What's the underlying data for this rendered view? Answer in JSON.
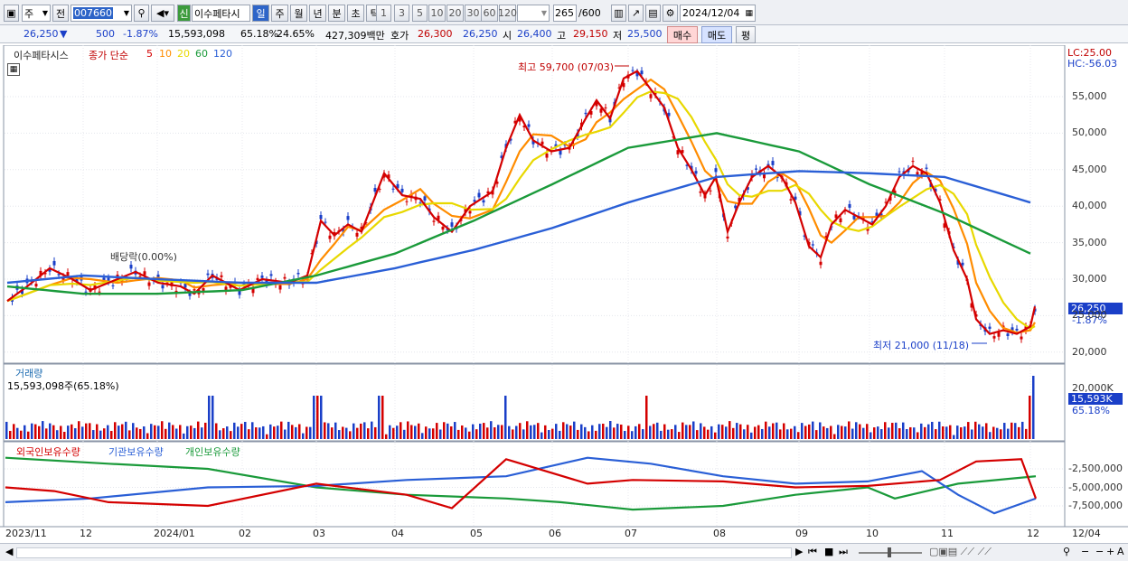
{
  "toolbar": {
    "market": "주",
    "prev": "전",
    "code": "007660",
    "name_badge": "신",
    "stock_name": "이수페타시",
    "periods": [
      "일",
      "주",
      "월",
      "년",
      "분",
      "초",
      "틱"
    ],
    "active_period": "일",
    "intervals": [
      "1",
      "3",
      "5",
      "10",
      "20",
      "30",
      "60",
      "120"
    ],
    "count": "265",
    "count_total": "/600",
    "date": "2024/12/04"
  },
  "quote": {
    "price": "26,250",
    "arrow": "▼",
    "change": "500",
    "change_pct": "-1.87%",
    "volume": "15,593,098",
    "turnover_pct": "65.18%",
    "vol_pct": "24.65%",
    "amount": "427,309백만",
    "bid_label": "호가",
    "bid": "26,300",
    "ask": "26,250",
    "open_label": "시",
    "open": "26,400",
    "high_label": "고",
    "high": "29,150",
    "low_label": "저",
    "low": "25,500",
    "buy_button": "매수",
    "sell_button": "매도",
    "eval_button": "평"
  },
  "price_pane": {
    "legend_name": "이수페타시스",
    "legend_series": "종가 단순",
    "ma_labels": [
      "5",
      "10",
      "20",
      "60",
      "120"
    ],
    "ma_colors": [
      "#d40000",
      "#ff8c00",
      "#e8d800",
      "#1a9a3a",
      "#2a5fd6"
    ],
    "lc": "LC:25.00",
    "hc": "HC:-56.03",
    "y_ticks": [
      "55,000",
      "50,000",
      "45,000",
      "40,000",
      "35,000",
      "30,000",
      "25,000",
      "20,000"
    ],
    "current_price_tag": "26,250",
    "current_pct_tag": "-1.87%",
    "high_annotation": "최고 59,700 (07/03)",
    "low_annotation": "최저 21,000 (11/18)",
    "dividend_annotation": "배당락(0.00%)"
  },
  "volume_pane": {
    "title": "거래량",
    "value_text": "15,593,098주(65.18%)",
    "y_tick": "20,000K",
    "current_tag": "15,593K",
    "pct_tag": "65.18%"
  },
  "holding_pane": {
    "series": [
      {
        "name": "외국인보유수량",
        "color": "#d40000"
      },
      {
        "name": "기관보유수량",
        "color": "#2a5fd6"
      },
      {
        "name": "개인보유수량",
        "color": "#1a9a3a"
      }
    ],
    "y_ticks": [
      "-2,500,000",
      "-5,000,000",
      "-7,500,000"
    ]
  },
  "x_axis": [
    "2023/11",
    "12",
    "2024/01",
    "02",
    "03",
    "04",
    "05",
    "06",
    "07",
    "08",
    "09",
    "10",
    "11",
    "12",
    "12/04"
  ],
  "chart_data": {
    "type": "line",
    "title": "",
    "x": [
      "2023/11",
      "12",
      "2024/01",
      "02",
      "03",
      "04",
      "05",
      "06",
      "07",
      "08",
      "09",
      "10",
      "11",
      "12"
    ],
    "series": [
      {
        "name": "종가",
        "values": [
          27500,
          30000,
          28500,
          29000,
          38000,
          42500,
          44000,
          49000,
          57000,
          43000,
          34000,
          38000,
          22000,
          26250
        ]
      },
      {
        "name": "120",
        "values": [
          29500,
          30500,
          30000,
          29500,
          29500,
          31500,
          34000,
          37000,
          40500,
          44000,
          44800,
          44500,
          44000,
          40500
        ]
      },
      {
        "name": "60",
        "values": [
          29000,
          28000,
          28000,
          28500,
          30500,
          33500,
          38000,
          43000,
          48000,
          50000,
          47500,
          43000,
          39000,
          33500
        ]
      }
    ],
    "ylim": [
      20000,
      60000
    ]
  }
}
